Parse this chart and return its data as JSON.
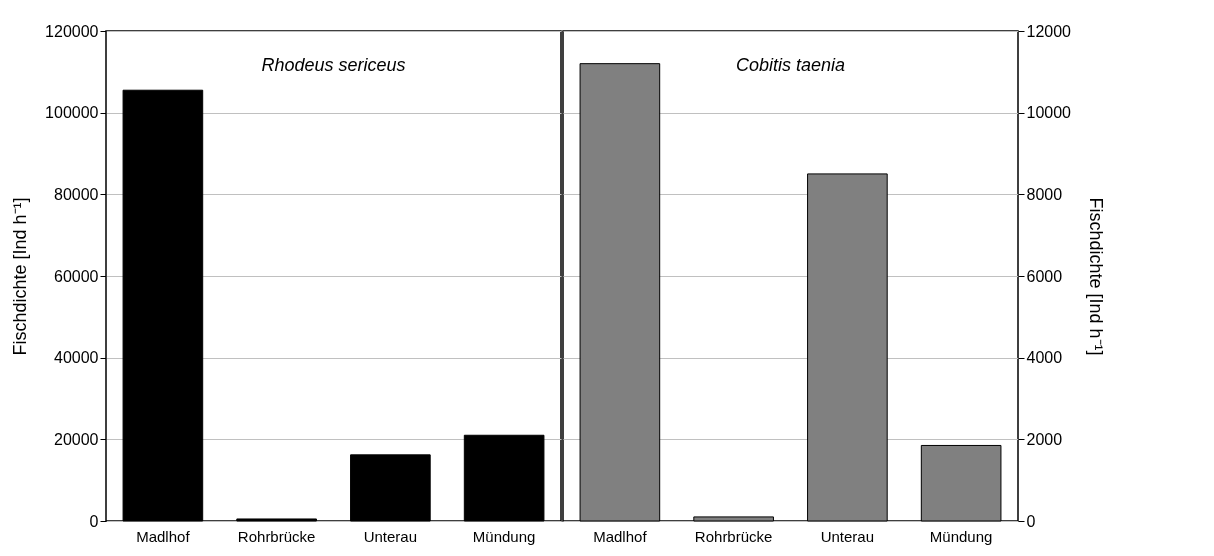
{
  "chart_data": [
    {
      "type": "bar",
      "title": "Rhodeus sericeus",
      "categories": [
        "Madlhof",
        "Rohrbrücke",
        "Unterau",
        "Mündung"
      ],
      "ylabel": "Fischdichte [Ind h⁻¹]",
      "ylim": [
        0,
        120000
      ],
      "yticks": [
        0,
        20000,
        40000,
        60000,
        80000,
        100000,
        120000
      ],
      "grid": "y",
      "series": [
        {
          "color": "#000000",
          "values": [
            105500,
            500,
            16200,
            21000
          ]
        }
      ]
    },
    {
      "type": "bar",
      "title": "Cobitis taenia",
      "categories": [
        "Madlhof",
        "Rohrbrücke",
        "Unterau",
        "Mündung"
      ],
      "y2label": "Fischdichte [Ind h⁻¹]",
      "y2lim": [
        0,
        12000
      ],
      "y2ticks": [
        0,
        2000,
        4000,
        6000,
        8000,
        10000,
        12000
      ],
      "grid": "y",
      "series": [
        {
          "color": "#808080",
          "axis": "y2",
          "values": [
            11200,
            100,
            8500,
            1850
          ]
        }
      ]
    }
  ]
}
